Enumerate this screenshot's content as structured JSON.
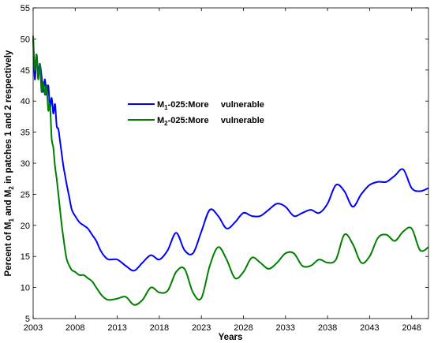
{
  "chart_data": {
    "type": "line",
    "xlabel": "Years",
    "ylabel": "Percent of M1 and M2 in patches 1 and 2 respectively",
    "ylabel_parts": {
      "p1": "Percent of M",
      "s1": "1",
      "p2": " and M",
      "s2": "2",
      "p3": " in patches 1 and 2 respectively"
    },
    "xlim": [
      2003,
      2050
    ],
    "ylim": [
      5,
      55
    ],
    "xticks": [
      2003,
      2008,
      2013,
      2018,
      2023,
      2028,
      2033,
      2038,
      2043,
      2048
    ],
    "yticks": [
      5,
      10,
      15,
      20,
      25,
      30,
      35,
      40,
      45,
      50,
      55
    ],
    "legend_location": "upper-left",
    "series": [
      {
        "name": "M1-025:More     vulnerable",
        "legend": {
          "base": "M",
          "sub": "1",
          "rest": "-025:More     vulnerable"
        },
        "color": "#0000ff",
        "x": [
          2003.0,
          2003.2,
          2003.4,
          2003.6,
          2003.8,
          2004.0,
          2004.2,
          2004.4,
          2004.6,
          2004.8,
          2005.0,
          2005.2,
          2005.4,
          2005.6,
          2005.8,
          2006.0,
          2006.2,
          2006.4,
          2006.6,
          2006.8,
          2007.0,
          2007.3,
          2007.6,
          2008.0,
          2008.5,
          2009.0,
          2009.5,
          2010.0,
          2010.5,
          2011.0,
          2011.5,
          2012.0,
          2013.0,
          2014.0,
          2015.0,
          2016.0,
          2017.0,
          2018.0,
          2019.0,
          2020.0,
          2021.0,
          2022.0,
          2023.0,
          2024.0,
          2025.0,
          2026.0,
          2027.0,
          2028.0,
          2029.0,
          2030.0,
          2031.0,
          2032.0,
          2033.0,
          2034.0,
          2035.0,
          2036.0,
          2037.0,
          2038.0,
          2039.0,
          2040.0,
          2041.0,
          2042.0,
          2043.0,
          2044.0,
          2045.0,
          2046.0,
          2047.0,
          2048.0,
          2049.0,
          2050.0
        ],
        "y": [
          50.0,
          43.5,
          47.5,
          44.5,
          46.0,
          44.0,
          41.5,
          43.5,
          41.0,
          42.5,
          39.0,
          40.5,
          38.0,
          39.5,
          36.0,
          35.5,
          33.5,
          31.5,
          29.5,
          28.0,
          26.5,
          24.5,
          22.5,
          21.5,
          20.5,
          20.0,
          19.5,
          18.5,
          17.5,
          16.0,
          15.0,
          14.5,
          14.5,
          13.5,
          12.7,
          14.0,
          15.2,
          14.5,
          16.0,
          18.8,
          16.0,
          15.5,
          19.0,
          22.5,
          21.5,
          19.5,
          20.5,
          22.0,
          21.5,
          21.5,
          22.5,
          23.5,
          23.0,
          21.5,
          22.0,
          22.5,
          22.0,
          23.5,
          26.5,
          25.5,
          23.0,
          25.0,
          26.5,
          27.0,
          27.0,
          28.0,
          29.0,
          26.0,
          25.5,
          26.0
        ]
      },
      {
        "name": "M2-025:More     vulnerable",
        "legend": {
          "base": "M",
          "sub": "2",
          "rest": "-025:More     vulnerable"
        },
        "color": "#007f00",
        "x": [
          2003.0,
          2003.2,
          2003.4,
          2003.6,
          2003.8,
          2004.0,
          2004.2,
          2004.4,
          2004.6,
          2004.8,
          2005.0,
          2005.2,
          2005.4,
          2005.6,
          2005.8,
          2006.0,
          2006.2,
          2006.4,
          2006.6,
          2006.8,
          2007.0,
          2007.3,
          2007.6,
          2008.0,
          2008.5,
          2009.0,
          2009.5,
          2010.0,
          2010.5,
          2011.0,
          2011.5,
          2012.0,
          2013.0,
          2014.0,
          2015.0,
          2016.0,
          2017.0,
          2018.0,
          2019.0,
          2020.0,
          2021.0,
          2022.0,
          2023.0,
          2024.0,
          2025.0,
          2026.0,
          2027.0,
          2028.0,
          2029.0,
          2030.0,
          2031.0,
          2032.0,
          2033.0,
          2034.0,
          2035.0,
          2036.0,
          2037.0,
          2038.0,
          2039.0,
          2040.0,
          2041.0,
          2042.0,
          2043.0,
          2044.0,
          2045.0,
          2046.0,
          2047.0,
          2048.0,
          2049.0,
          2050.0
        ],
        "y": [
          50.5,
          45.0,
          47.5,
          43.5,
          46.0,
          41.5,
          43.0,
          41.0,
          42.5,
          38.5,
          39.5,
          34.0,
          32.5,
          29.5,
          27.5,
          25.0,
          22.5,
          20.0,
          18.0,
          16.0,
          14.5,
          13.5,
          12.8,
          12.5,
          12.0,
          12.0,
          11.5,
          11.0,
          10.0,
          9.0,
          8.3,
          8.0,
          8.2,
          8.5,
          7.2,
          8.0,
          10.0,
          9.2,
          9.5,
          12.5,
          13.0,
          9.2,
          8.3,
          13.5,
          16.5,
          14.5,
          11.5,
          12.5,
          14.8,
          14.0,
          13.0,
          14.0,
          15.5,
          15.5,
          13.5,
          13.5,
          14.5,
          14.0,
          14.5,
          18.5,
          17.0,
          14.0,
          15.0,
          18.0,
          18.5,
          17.5,
          19.0,
          19.5,
          16.0,
          16.5
        ]
      }
    ]
  }
}
